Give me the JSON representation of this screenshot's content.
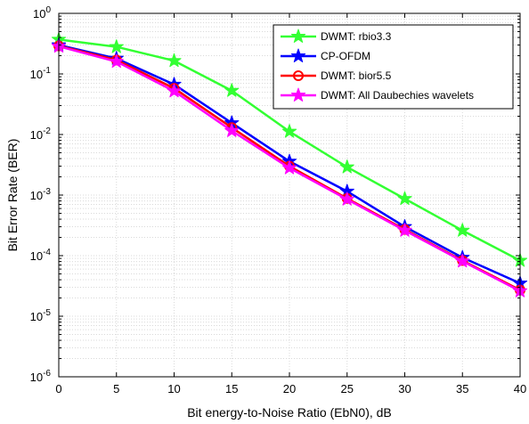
{
  "chart_data": {
    "type": "line",
    "xlabel": "Bit energy-to-Noise Ratio (EbN0), dB",
    "ylabel": "Bit Error Rate (BER)",
    "xlim": [
      0,
      40
    ],
    "ylim": [
      1e-06,
      1
    ],
    "yscale": "log",
    "grid": true,
    "legend_position": "top-right",
    "x": [
      0,
      5,
      10,
      15,
      20,
      25,
      30,
      35,
      40
    ],
    "xticks": [
      "0",
      "5",
      "10",
      "15",
      "20",
      "25",
      "30",
      "35",
      "40"
    ],
    "yticks": [
      {
        "base": "10",
        "exp": "0"
      },
      {
        "base": "10",
        "exp": "-1"
      },
      {
        "base": "10",
        "exp": "-2"
      },
      {
        "base": "10",
        "exp": "-3"
      },
      {
        "base": "10",
        "exp": "-4"
      },
      {
        "base": "10",
        "exp": "-5"
      },
      {
        "base": "10",
        "exp": "-6"
      }
    ],
    "series": [
      {
        "name": "DWMT: rbio3.3",
        "color": "#33ff33",
        "marker": "pentagram",
        "values": [
          0.37,
          0.28,
          0.165,
          0.053,
          0.0112,
          0.0029,
          0.00087,
          0.00026,
          8.3e-05
        ]
      },
      {
        "name": "CP-OFDM",
        "color": "#0000ff",
        "marker": "pentagram",
        "values": [
          0.3,
          0.18,
          0.067,
          0.0155,
          0.0036,
          0.00115,
          0.0003,
          9.3e-05,
          3.5e-05
        ]
      },
      {
        "name": "DWMT: bior5.5",
        "color": "#ff0000",
        "marker": "circle",
        "values": [
          0.29,
          0.17,
          0.058,
          0.013,
          0.003,
          0.00088,
          0.00027,
          8.3e-05,
          2.7e-05
        ]
      },
      {
        "name": "DWMT: All Daubechies wavelets",
        "color": "#ff00ff",
        "marker": "pentagram",
        "values": [
          0.285,
          0.16,
          0.052,
          0.0115,
          0.0028,
          0.00085,
          0.00026,
          8.1e-05,
          2.6e-05
        ]
      }
    ]
  }
}
